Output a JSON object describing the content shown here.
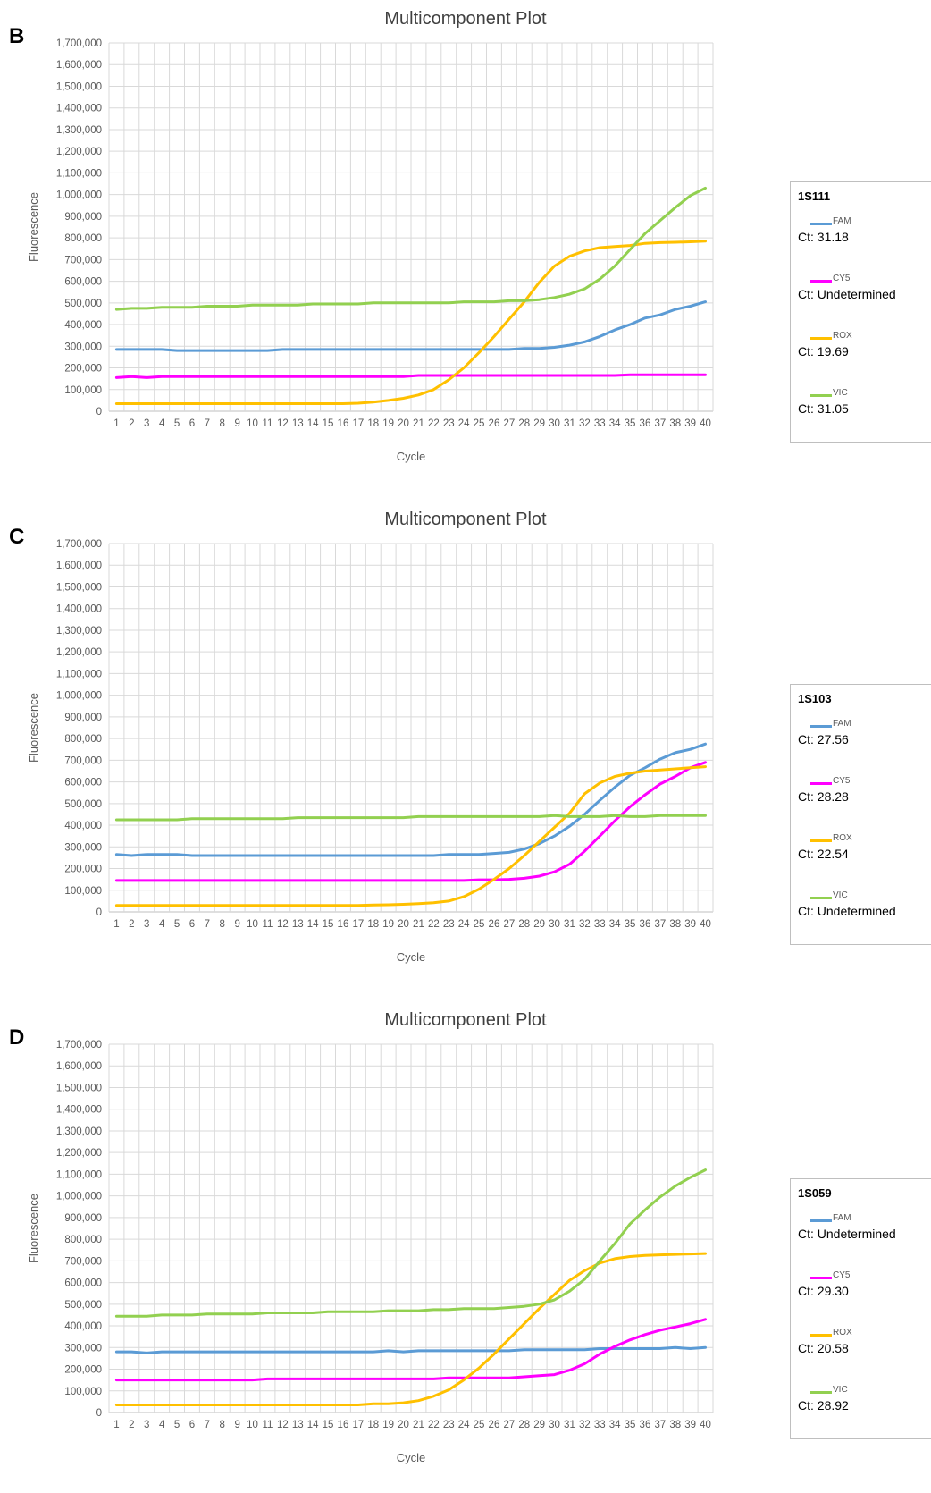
{
  "colors": {
    "FAM": "#5b9bd5",
    "CY5": "#ff00ff",
    "ROX": "#ffc000",
    "VIC": "#92d050"
  },
  "panels": [
    {
      "letter": "B",
      "chart_data": {
        "type": "line",
        "title": "Multicomponent Plot",
        "xlabel": "Cycle",
        "ylabel": "Fluorescence",
        "ylim": [
          0,
          1700000
        ],
        "ytick_step": 100000,
        "grid": true,
        "legend_position": "right",
        "x": [
          1,
          2,
          3,
          4,
          5,
          6,
          7,
          8,
          9,
          10,
          11,
          12,
          13,
          14,
          15,
          16,
          17,
          18,
          19,
          20,
          21,
          22,
          23,
          24,
          25,
          26,
          27,
          28,
          29,
          30,
          31,
          32,
          33,
          34,
          35,
          36,
          37,
          38,
          39,
          40
        ],
        "series": [
          {
            "name": "FAM",
            "values": [
              285000,
              285000,
              285000,
              285000,
              280000,
              280000,
              280000,
              280000,
              280000,
              280000,
              280000,
              285000,
              285000,
              285000,
              285000,
              285000,
              285000,
              285000,
              285000,
              285000,
              285000,
              285000,
              285000,
              285000,
              285000,
              285000,
              285000,
              290000,
              290000,
              295000,
              305000,
              320000,
              345000,
              375000,
              400000,
              430000,
              445000,
              470000,
              485000,
              505000
            ]
          },
          {
            "name": "CY5",
            "values": [
              155000,
              160000,
              155000,
              160000,
              160000,
              160000,
              160000,
              160000,
              160000,
              160000,
              160000,
              160000,
              160000,
              160000,
              160000,
              160000,
              160000,
              160000,
              160000,
              160000,
              165000,
              165000,
              165000,
              165000,
              165000,
              165000,
              165000,
              165000,
              165000,
              165000,
              165000,
              165000,
              165000,
              165000,
              168000,
              168000,
              168000,
              168000,
              168000,
              168000
            ]
          },
          {
            "name": "ROX",
            "values": [
              35000,
              35000,
              35000,
              35000,
              35000,
              35000,
              35000,
              35000,
              35000,
              35000,
              35000,
              35000,
              35000,
              35000,
              35000,
              35000,
              37000,
              42000,
              50000,
              60000,
              75000,
              100000,
              145000,
              200000,
              270000,
              345000,
              425000,
              505000,
              595000,
              670000,
              715000,
              740000,
              755000,
              760000,
              765000,
              775000,
              778000,
              780000,
              782000,
              785000
            ]
          },
          {
            "name": "VIC",
            "values": [
              470000,
              475000,
              475000,
              480000,
              480000,
              480000,
              485000,
              485000,
              485000,
              490000,
              490000,
              490000,
              490000,
              495000,
              495000,
              495000,
              495000,
              500000,
              500000,
              500000,
              500000,
              500000,
              500000,
              505000,
              505000,
              505000,
              510000,
              510000,
              515000,
              525000,
              540000,
              565000,
              610000,
              670000,
              745000,
              820000,
              880000,
              940000,
              995000,
              1030000
            ]
          }
        ]
      },
      "legend": {
        "sample": "1S111",
        "entries": [
          {
            "name": "FAM",
            "ct": "Ct: 31.18"
          },
          {
            "name": "CY5",
            "ct": "Ct: Undetermined"
          },
          {
            "name": "ROX",
            "ct": "Ct: 19.69"
          },
          {
            "name": "VIC",
            "ct": "Ct: 31.05"
          }
        ]
      }
    },
    {
      "letter": "C",
      "chart_data": {
        "type": "line",
        "title": "Multicomponent Plot",
        "xlabel": "Cycle",
        "ylabel": "Fluorescence",
        "ylim": [
          0,
          1700000
        ],
        "ytick_step": 100000,
        "grid": true,
        "legend_position": "right",
        "x": [
          1,
          2,
          3,
          4,
          5,
          6,
          7,
          8,
          9,
          10,
          11,
          12,
          13,
          14,
          15,
          16,
          17,
          18,
          19,
          20,
          21,
          22,
          23,
          24,
          25,
          26,
          27,
          28,
          29,
          30,
          31,
          32,
          33,
          34,
          35,
          36,
          37,
          38,
          39,
          40
        ],
        "series": [
          {
            "name": "FAM",
            "values": [
              265000,
              260000,
              265000,
              265000,
              265000,
              260000,
              260000,
              260000,
              260000,
              260000,
              260000,
              260000,
              260000,
              260000,
              260000,
              260000,
              260000,
              260000,
              260000,
              260000,
              260000,
              260000,
              265000,
              265000,
              265000,
              270000,
              275000,
              290000,
              315000,
              350000,
              395000,
              450000,
              515000,
              575000,
              630000,
              665000,
              705000,
              735000,
              750000,
              775000
            ]
          },
          {
            "name": "CY5",
            "values": [
              145000,
              145000,
              145000,
              145000,
              145000,
              145000,
              145000,
              145000,
              145000,
              145000,
              145000,
              145000,
              145000,
              145000,
              145000,
              145000,
              145000,
              145000,
              145000,
              145000,
              145000,
              145000,
              145000,
              145000,
              148000,
              148000,
              150000,
              155000,
              165000,
              185000,
              220000,
              280000,
              350000,
              420000,
              485000,
              540000,
              590000,
              625000,
              665000,
              690000
            ]
          },
          {
            "name": "ROX",
            "values": [
              30000,
              30000,
              30000,
              30000,
              30000,
              30000,
              30000,
              30000,
              30000,
              30000,
              30000,
              30000,
              30000,
              30000,
              30000,
              30000,
              30000,
              32000,
              33000,
              35000,
              38000,
              42000,
              50000,
              70000,
              105000,
              150000,
              200000,
              260000,
              325000,
              390000,
              455000,
              545000,
              595000,
              625000,
              640000,
              650000,
              655000,
              660000,
              665000,
              670000
            ]
          },
          {
            "name": "VIC",
            "values": [
              425000,
              425000,
              425000,
              425000,
              425000,
              430000,
              430000,
              430000,
              430000,
              430000,
              430000,
              430000,
              435000,
              435000,
              435000,
              435000,
              435000,
              435000,
              435000,
              435000,
              440000,
              440000,
              440000,
              440000,
              440000,
              440000,
              440000,
              440000,
              440000,
              445000,
              440000,
              440000,
              440000,
              445000,
              440000,
              440000,
              445000,
              445000,
              445000,
              445000
            ]
          }
        ]
      },
      "legend": {
        "sample": "1S103",
        "entries": [
          {
            "name": "FAM",
            "ct": "Ct: 27.56"
          },
          {
            "name": "CY5",
            "ct": "Ct: 28.28"
          },
          {
            "name": "ROX",
            "ct": "Ct: 22.54"
          },
          {
            "name": "VIC",
            "ct": "Ct: Undetermined"
          }
        ]
      }
    },
    {
      "letter": "D",
      "chart_data": {
        "type": "line",
        "title": "Multicomponent Plot",
        "xlabel": "Cycle",
        "ylabel": "Fluorescence",
        "ylim": [
          0,
          1700000
        ],
        "ytick_step": 100000,
        "grid": true,
        "legend_position": "right",
        "x": [
          1,
          2,
          3,
          4,
          5,
          6,
          7,
          8,
          9,
          10,
          11,
          12,
          13,
          14,
          15,
          16,
          17,
          18,
          19,
          20,
          21,
          22,
          23,
          24,
          25,
          26,
          27,
          28,
          29,
          30,
          31,
          32,
          33,
          34,
          35,
          36,
          37,
          38,
          39,
          40
        ],
        "series": [
          {
            "name": "FAM",
            "values": [
              280000,
              280000,
              275000,
              280000,
              280000,
              280000,
              280000,
              280000,
              280000,
              280000,
              280000,
              280000,
              280000,
              280000,
              280000,
              280000,
              280000,
              280000,
              285000,
              280000,
              285000,
              285000,
              285000,
              285000,
              285000,
              285000,
              285000,
              290000,
              290000,
              290000,
              290000,
              290000,
              295000,
              295000,
              295000,
              295000,
              295000,
              300000,
              295000,
              300000
            ]
          },
          {
            "name": "CY5",
            "values": [
              150000,
              150000,
              150000,
              150000,
              150000,
              150000,
              150000,
              150000,
              150000,
              150000,
              155000,
              155000,
              155000,
              155000,
              155000,
              155000,
              155000,
              155000,
              155000,
              155000,
              155000,
              155000,
              160000,
              160000,
              160000,
              160000,
              160000,
              165000,
              170000,
              175000,
              195000,
              225000,
              270000,
              305000,
              335000,
              360000,
              380000,
              395000,
              410000,
              430000
            ]
          },
          {
            "name": "ROX",
            "values": [
              35000,
              35000,
              35000,
              35000,
              35000,
              35000,
              35000,
              35000,
              35000,
              35000,
              35000,
              35000,
              35000,
              35000,
              35000,
              35000,
              35000,
              40000,
              40000,
              45000,
              55000,
              75000,
              105000,
              150000,
              205000,
              270000,
              340000,
              410000,
              480000,
              545000,
              610000,
              655000,
              690000,
              710000,
              720000,
              725000,
              728000,
              730000,
              732000,
              734000
            ]
          },
          {
            "name": "VIC",
            "values": [
              445000,
              445000,
              445000,
              450000,
              450000,
              450000,
              455000,
              455000,
              455000,
              455000,
              460000,
              460000,
              460000,
              460000,
              465000,
              465000,
              465000,
              465000,
              470000,
              470000,
              470000,
              475000,
              475000,
              480000,
              480000,
              480000,
              485000,
              490000,
              500000,
              520000,
              560000,
              615000,
              700000,
              780000,
              870000,
              935000,
              995000,
              1045000,
              1085000,
              1120000
            ]
          }
        ]
      },
      "legend": {
        "sample": "1S059",
        "entries": [
          {
            "name": "FAM",
            "ct": "Ct: Undetermined"
          },
          {
            "name": "CY5",
            "ct": "Ct: 29.30"
          },
          {
            "name": "ROX",
            "ct": "Ct: 20.58"
          },
          {
            "name": "VIC",
            "ct": "Ct: 28.92"
          }
        ]
      }
    }
  ]
}
